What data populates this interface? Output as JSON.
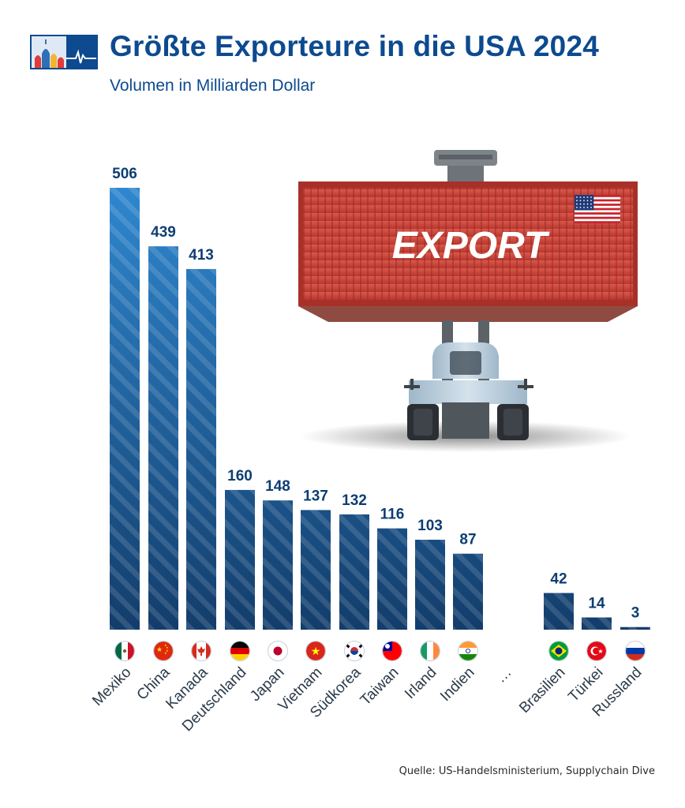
{
  "header": {
    "title": "Größte Exporteure in die USA 2024",
    "subtitle": "Volumen in Milliarden Dollar",
    "logo_icon": "domes-skyline-logo-icon"
  },
  "illustration": {
    "container_label": "EXPORT",
    "flag_icon": "us-flag-icon",
    "vehicle_icon": "forklift-icon"
  },
  "chart_data": {
    "type": "bar",
    "categories": [
      "Mexiko",
      "China",
      "Kanada",
      "Deutschland",
      "Japan",
      "Vietnam",
      "Südkorea",
      "Taiwan",
      "Irland",
      "Indien",
      "…",
      "Brasilien",
      "Türkei",
      "Russland"
    ],
    "values": [
      506,
      439,
      413,
      160,
      148,
      137,
      132,
      116,
      103,
      87,
      null,
      42,
      14,
      3
    ],
    "flags": [
      "mexico-flag-icon",
      "china-flag-icon",
      "canada-flag-icon",
      "germany-flag-icon",
      "japan-flag-icon",
      "vietnam-flag-icon",
      "south-korea-flag-icon",
      "taiwan-flag-icon",
      "ireland-flag-icon",
      "india-flag-icon",
      null,
      "brazil-flag-icon",
      "turkey-flag-icon",
      "russia-flag-icon"
    ],
    "title": "Größte Exporteure in die USA 2024",
    "subtitle": "Volumen in Milliarden Dollar",
    "xlabel": "",
    "ylabel": "",
    "ylim": [
      0,
      506
    ],
    "grid": false,
    "legend": "none",
    "colors": {
      "top": "#2f87cf",
      "bottom": "#133d6b",
      "stripe": "#ffffff",
      "label": "#0d3d73",
      "category": "#2b3b4a"
    }
  },
  "footer": {
    "source": "Quelle: US-Handelsministerium, Supplychain Dive"
  }
}
